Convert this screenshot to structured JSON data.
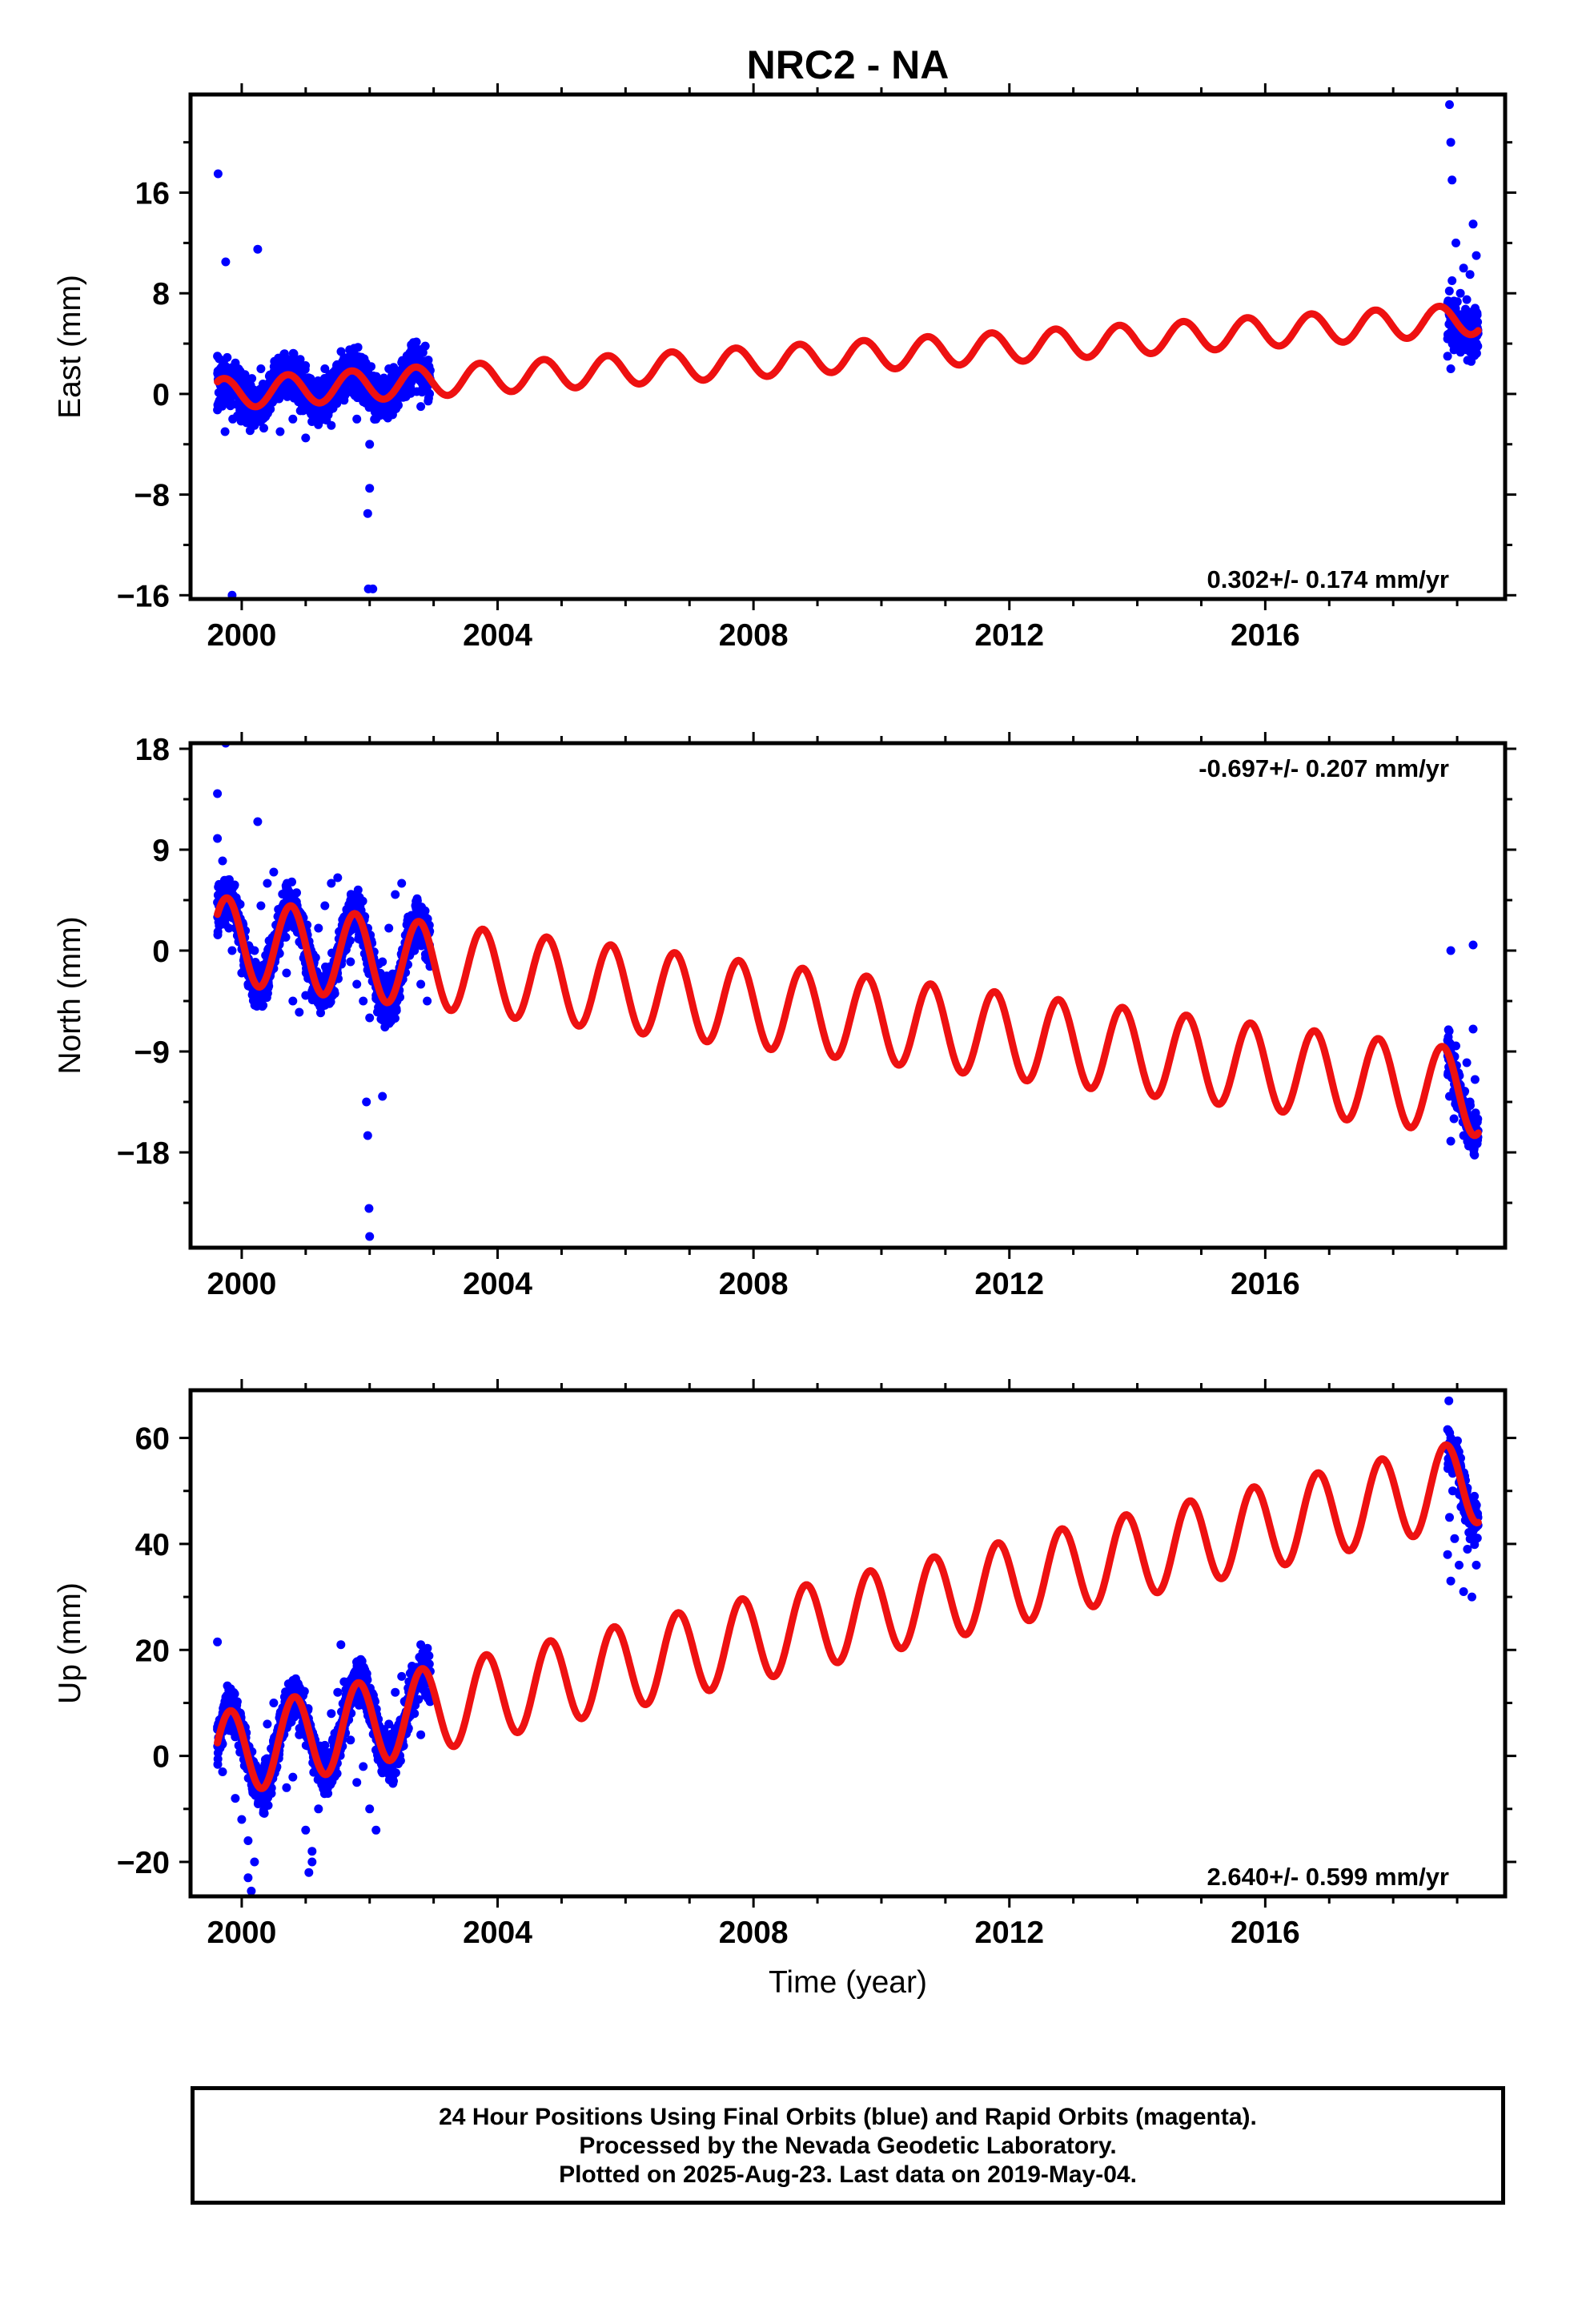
{
  "chart_data": {
    "title": "NRC2 - NA",
    "type": "scatter",
    "xlabel": "Time (year)",
    "xlim": [
      1999.2,
      2019.75
    ],
    "xticks": [
      2000,
      2004,
      2008,
      2012,
      2016
    ],
    "panels": [
      {
        "id": "east",
        "ylabel": "East (mm)",
        "ylim": [
          -16.3,
          23.8
        ],
        "yticks": [
          -16,
          -8,
          0,
          8,
          16
        ],
        "rate_label": "0.302+/- 0.174 mm/yr",
        "rate_position": "bottom-right",
        "series": [
          {
            "kind": "points",
            "color": "#0000ff",
            "x": [
              1999.62,
              1999.65,
              1999.7,
              1999.74,
              1999.8,
              1999.86,
              1999.92,
              2000.0,
              2000.1,
              2000.2,
              2000.3,
              2000.4,
              2000.5,
              2000.6,
              2000.7,
              2000.8,
              2000.9,
              2001.0,
              2001.1,
              2001.2,
              2001.3,
              2001.4,
              2001.5,
              2001.6,
              2001.7,
              2001.8,
              2001.9,
              2001.97,
              2002.0,
              2002.05,
              2002.1,
              2002.2,
              2002.3,
              2002.4,
              2002.5,
              2002.6,
              2002.7,
              2002.8,
              2002.9,
              1999.63,
              1999.75,
              2000.25,
              2001.98,
              2002.0,
              1999.85,
              2018.85,
              2018.88,
              2018.9,
              2018.92,
              2018.95,
              2018.98,
              2019.0,
              2019.02,
              2019.05,
              2019.08,
              2019.1,
              2019.12,
              2019.15,
              2019.18,
              2019.2,
              2019.22,
              2019.25,
              2019.28,
              2019.3,
              2018.88,
              2018.9,
              2018.92,
              2018.95
            ],
            "y": [
              3.0,
              -1.0,
              2.0,
              -3.0,
              0.5,
              -2.0,
              1.0,
              -1.5,
              0.0,
              -2.5,
              2.0,
              -1.0,
              0.5,
              -3.0,
              1.5,
              -2.0,
              -0.5,
              -3.5,
              0.5,
              -1.5,
              2.0,
              -2.5,
              1.0,
              -0.5,
              2.5,
              -2.0,
              1.0,
              -9.5,
              -7.5,
              -15.5,
              -2.0,
              0.5,
              2.0,
              -1.0,
              2.5,
              0.0,
              1.5,
              -1.0,
              2.0,
              17.5,
              10.5,
              11.5,
              -15.5,
              -4.0,
              -16.0,
              3.0,
              7.0,
              2.0,
              9.0,
              5.0,
              12.0,
              4.0,
              6.0,
              8.0,
              3.5,
              10.0,
              5.5,
              7.5,
              4.0,
              9.5,
              6.5,
              13.5,
              5.0,
              11.0,
              23.0,
              20.0,
              17.0,
              3.5
            ]
          },
          {
            "kind": "model",
            "color": "#ee1111",
            "rate": 0.302,
            "offset": 0.0,
            "amplitude": 1.2,
            "phase": 0.15,
            "x_start": 1999.62,
            "x_end": 2019.33
          }
        ]
      },
      {
        "id": "north",
        "ylabel": "North (mm)",
        "ylim": [
          -26.5,
          18.5
        ],
        "yticks": [
          -18,
          -9,
          0,
          9,
          18
        ],
        "rate_label": "-0.697+/- 0.207 mm/yr",
        "rate_position": "top-right",
        "series": [
          {
            "kind": "points",
            "color": "#0000ff",
            "x": [
              1999.62,
              1999.65,
              1999.7,
              1999.75,
              1999.8,
              1999.85,
              1999.9,
              2000.0,
              2000.1,
              2000.2,
              2000.3,
              2000.4,
              2000.5,
              2000.6,
              2000.7,
              2000.8,
              2000.9,
              2001.0,
              2001.1,
              2001.2,
              2001.3,
              2001.4,
              2001.5,
              2001.6,
              2001.7,
              2001.8,
              2001.9,
              2002.0,
              2002.1,
              2002.2,
              2002.3,
              2002.4,
              2002.5,
              2002.6,
              2002.7,
              2002.8,
              2002.9,
              1999.62,
              1999.75,
              2000.25,
              2001.95,
              2001.97,
              2001.99,
              2002.0,
              2002.2,
              2018.85,
              2018.88,
              2018.9,
              2018.92,
              2018.95,
              2018.98,
              2019.0,
              2019.05,
              2019.1,
              2019.15,
              2019.2,
              2019.25,
              2019.28,
              2018.9,
              2019.25
            ],
            "y": [
              10.0,
              4.0,
              8.0,
              6.0,
              2.0,
              0.0,
              2.0,
              -2.0,
              -3.0,
              0.0,
              4.0,
              6.0,
              7.0,
              3.0,
              -2.0,
              -4.5,
              -5.5,
              -4.0,
              -1.0,
              2.0,
              4.0,
              6.0,
              6.5,
              3.0,
              -1.0,
              -3.0,
              -4.5,
              -6.0,
              -4.0,
              -1.0,
              2.0,
              5.0,
              6.0,
              3.0,
              0.0,
              -3.0,
              -4.5,
              14.0,
              18.5,
              11.5,
              -13.5,
              -16.5,
              -23.0,
              -25.5,
              -13.0,
              -9.0,
              -13.0,
              -17.0,
              -11.0,
              -15.0,
              -8.5,
              -14.0,
              -12.0,
              -16.5,
              -10.0,
              -13.5,
              -7.0,
              -11.5,
              0.0,
              0.5
            ]
          },
          {
            "kind": "model",
            "color": "#ee1111",
            "rate": -0.697,
            "offset": 1.0,
            "amplitude": 3.8,
            "phase": 0.1,
            "x_start": 1999.62,
            "x_end": 2019.33
          }
        ]
      },
      {
        "id": "up",
        "ylabel": "Up (mm)",
        "ylim": [
          -26.5,
          69.0
        ],
        "yticks": [
          -20,
          0,
          20,
          40,
          60
        ],
        "rate_label": "2.640+/- 0.599 mm/yr",
        "rate_position": "bottom-right",
        "series": [
          {
            "kind": "points",
            "color": "#0000ff",
            "x": [
              1999.62,
              1999.7,
              1999.8,
              1999.9,
              2000.0,
              2000.1,
              2000.2,
              2000.3,
              2000.4,
              2000.5,
              2000.6,
              2000.7,
              2000.8,
              2000.9,
              2001.0,
              2001.1,
              2001.2,
              2001.3,
              2001.4,
              2001.5,
              2001.6,
              2001.7,
              2001.8,
              2001.9,
              2002.0,
              2002.1,
              2002.2,
              2002.3,
              2002.4,
              2002.5,
              2002.6,
              2002.7,
              2002.8,
              2002.9,
              1999.62,
              2000.1,
              2000.15,
              2001.05,
              2001.1,
              2001.55,
              2002.8,
              2018.85,
              2018.88,
              2018.9,
              2018.93,
              2018.96,
              2019.0,
              2019.03,
              2019.06,
              2019.1,
              2019.13,
              2019.16,
              2019.2,
              2019.23,
              2019.27,
              2019.3,
              2018.87,
              2018.9
            ],
            "y": [
              5.0,
              -3.0,
              8.0,
              -8.0,
              -12.0,
              -16.0,
              -20.0,
              -5.0,
              6.0,
              10.0,
              2.0,
              -6.0,
              -4.0,
              4.0,
              -14.0,
              -18.0,
              -10.0,
              2.0,
              8.0,
              12.0,
              14.0,
              3.0,
              -5.0,
              -2.0,
              -10.0,
              -14.0,
              -2.0,
              6.0,
              12.0,
              15.0,
              10.0,
              8.0,
              4.0,
              12.0,
              21.5,
              -23.0,
              -25.5,
              -22.0,
              -20.0,
              21.0,
              21.0,
              38.0,
              45.0,
              33.0,
              50.0,
              41.0,
              55.0,
              36.0,
              47.0,
              31.0,
              52.0,
              39.0,
              44.0,
              30.0,
              49.0,
              36.0,
              67.0,
              60.0
            ]
          },
          {
            "kind": "model",
            "color": "#ee1111",
            "rate": 2.64,
            "offset": 0.0,
            "amplitude": 8.0,
            "phase": 0.05,
            "x_start": 1999.62,
            "x_end": 2019.33
          }
        ]
      }
    ]
  },
  "footer": {
    "line1": "24 Hour Positions Using Final Orbits (blue) and Rapid Orbits (magenta).",
    "line2": "Processed by the Nevada Geodetic Laboratory.",
    "line3": "Plotted on 2025-Aug-23. Last data on 2019-May-04."
  }
}
